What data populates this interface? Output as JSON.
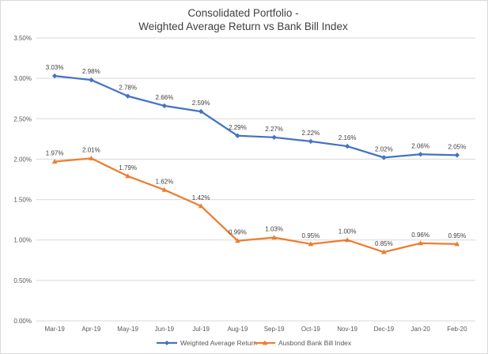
{
  "chart_data": {
    "type": "line",
    "title": "Consolidated Portfolio -",
    "subtitle": "Weighted Average Return vs Bank Bill Index",
    "categories": [
      "Mar-19",
      "Apr-19",
      "May-19",
      "Jun-19",
      "Jul-19",
      "Aug-19",
      "Sep-19",
      "Oct-19",
      "Nov-19",
      "Dec-19",
      "Jan-20",
      "Feb-20"
    ],
    "series": [
      {
        "name": "Weighted Average Return",
        "color": "#4472c4",
        "marker": "diamond",
        "values": [
          3.03,
          2.98,
          2.78,
          2.66,
          2.59,
          2.29,
          2.27,
          2.22,
          2.16,
          2.02,
          2.06,
          2.05
        ],
        "labels": [
          "3.03%",
          "2.98%",
          "2.78%",
          "2.66%",
          "2.59%",
          "2.29%",
          "2.27%",
          "2.22%",
          "2.16%",
          "2.02%",
          "2.06%",
          "2.05%"
        ]
      },
      {
        "name": "Ausbond Bank Bill Index",
        "color": "#ed7d31",
        "marker": "triangle",
        "values": [
          1.97,
          2.01,
          1.79,
          1.62,
          1.42,
          0.99,
          1.03,
          0.95,
          1.0,
          0.85,
          0.96,
          0.95
        ],
        "labels": [
          "1.97%",
          "2.01%",
          "1.79%",
          "1.62%",
          "1.42%",
          "0.99%",
          "1.03%",
          "0.95%",
          "1.00%",
          "0.85%",
          "0.96%",
          "0.95%"
        ]
      }
    ],
    "ylim": [
      0,
      3.5
    ],
    "yticks": [
      0,
      0.5,
      1.0,
      1.5,
      2.0,
      2.5,
      3.0,
      3.5
    ],
    "ytick_labels": [
      "0.00%",
      "0.50%",
      "1.00%",
      "1.50%",
      "2.00%",
      "2.50%",
      "3.00%",
      "3.50%"
    ],
    "grid": true,
    "legend_position": "bottom",
    "gridline_color": "#d9d9d9"
  }
}
